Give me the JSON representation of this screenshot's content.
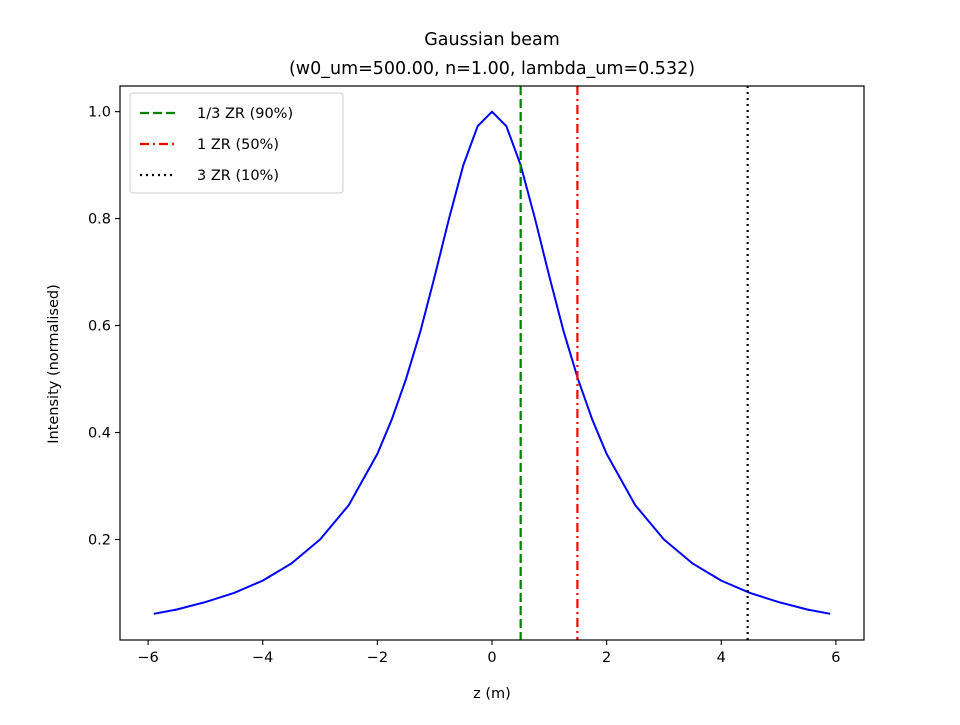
{
  "chart_data": {
    "type": "line",
    "title": "Gaussian beam",
    "subtitle": "(w0_um=500.00, n=1.00, lambda_um=0.532)",
    "xlabel": "z (m)",
    "ylabel": "Intensity (normalised)",
    "xlim": [
      -6.49,
      6.49
    ],
    "ylim": [
      0.012,
      1.048
    ],
    "x_ticks": [
      -6,
      -4,
      -2,
      0,
      2,
      4,
      6
    ],
    "x_tick_labels": [
      "−6",
      "−4",
      "−2",
      "0",
      "2",
      "4",
      "6"
    ],
    "y_ticks": [
      0.2,
      0.4,
      0.6,
      0.8,
      1.0
    ],
    "y_tick_labels": [
      "0.2",
      "0.4",
      "0.6",
      "0.8",
      "1.0"
    ],
    "grid": false,
    "legend_position": "top-left",
    "series": [
      {
        "color": "#0000ff",
        "style": "solid",
        "x": [
          -5.9,
          -5.5,
          -5.0,
          -4.5,
          -4.0,
          -3.5,
          -3.0,
          -2.5,
          -2.0,
          -1.75,
          -1.5,
          -1.25,
          -1.0,
          -0.75,
          -0.5,
          -0.25,
          0.0,
          0.25,
          0.5,
          0.75,
          1.0,
          1.25,
          1.5,
          1.75,
          2.0,
          2.5,
          3.0,
          3.5,
          4.0,
          4.5,
          5.0,
          5.5,
          5.9
        ],
        "y": [
          0.061,
          0.069,
          0.083,
          0.1,
          0.123,
          0.155,
          0.2,
          0.264,
          0.36,
          0.424,
          0.5,
          0.589,
          0.692,
          0.8,
          0.9,
          0.973,
          1.0,
          0.973,
          0.9,
          0.8,
          0.692,
          0.589,
          0.5,
          0.424,
          0.36,
          0.264,
          0.2,
          0.155,
          0.123,
          0.1,
          0.083,
          0.069,
          0.061
        ]
      }
    ],
    "vlines": [
      {
        "name": "1/3 ZR (90%)",
        "x": 0.5,
        "color": "#008000",
        "style": "dashed"
      },
      {
        "name": "1 ZR (50%)",
        "x": 1.49,
        "color": "#ff0000",
        "style": "dashdot"
      },
      {
        "name": "3 ZR (10%)",
        "x": 4.46,
        "color": "#000000",
        "style": "dotted"
      }
    ]
  }
}
